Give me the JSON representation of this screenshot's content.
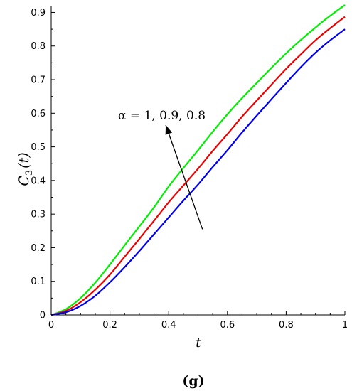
{
  "chart_data": {
    "type": "line",
    "title": "",
    "xlabel": "t",
    "ylabel_main": "C",
    "ylabel_sub": "3",
    "ylabel_arg": "(t)",
    "xlim": [
      0,
      1
    ],
    "ylim": [
      0,
      0.92
    ],
    "xticks": [
      0,
      0.2,
      0.4,
      0.6,
      0.8,
      1
    ],
    "xtick_labels": [
      "0",
      "0.2",
      "0.4",
      "0.6",
      "0.8",
      "1"
    ],
    "yticks": [
      0,
      0.1,
      0.2,
      0.3,
      0.4,
      0.5,
      0.6,
      0.7,
      0.8,
      0.9
    ],
    "ytick_labels": [
      "0",
      "0.1",
      "0.2",
      "0.3",
      "0.4",
      "0.5",
      "0.6",
      "0.7",
      "0.8",
      "0.9"
    ],
    "grid": false,
    "x": [
      0,
      0.05,
      0.1,
      0.15,
      0.2,
      0.25,
      0.3,
      0.35,
      0.4,
      0.45,
      0.5,
      0.55,
      0.6,
      0.65,
      0.7,
      0.75,
      0.8,
      0.85,
      0.9,
      0.95,
      1
    ],
    "series": [
      {
        "color": "#00ee00",
        "values": [
          0.0,
          0.017,
          0.05,
          0.096,
          0.15,
          0.207,
          0.263,
          0.32,
          0.382,
          0.437,
          0.49,
          0.545,
          0.597,
          0.645,
          0.69,
          0.735,
          0.778,
          0.818,
          0.855,
          0.89,
          0.922
        ]
      },
      {
        "color": "#ee0000",
        "values": [
          0.0,
          0.012,
          0.038,
          0.075,
          0.12,
          0.173,
          0.226,
          0.28,
          0.335,
          0.385,
          0.435,
          0.488,
          0.538,
          0.59,
          0.638,
          0.685,
          0.732,
          0.775,
          0.817,
          0.853,
          0.887
        ]
      },
      {
        "color": "#0000ee",
        "values": [
          0.0,
          0.008,
          0.027,
          0.057,
          0.097,
          0.142,
          0.19,
          0.24,
          0.29,
          0.34,
          0.388,
          0.44,
          0.49,
          0.543,
          0.593,
          0.642,
          0.69,
          0.737,
          0.78,
          0.817,
          0.85
        ]
      }
    ],
    "annotation": {
      "text": "α = 1, 0.9, 0.8",
      "arrow_from": [
        0.515,
        0.255
      ],
      "arrow_to": [
        0.39,
        0.565
      ]
    }
  },
  "caption": "(g)"
}
